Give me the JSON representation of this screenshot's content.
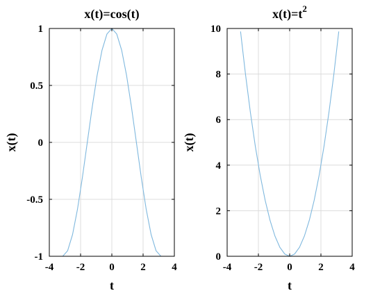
{
  "chart_data": [
    {
      "type": "line",
      "title": "x(t)=cos(t)",
      "xlabel": "t",
      "ylabel": "x(t)",
      "xlim": [
        -4,
        4
      ],
      "ylim": [
        -1,
        1
      ],
      "xticks": [
        -4,
        -2,
        0,
        2,
        4
      ],
      "xtick_labels": [
        "-4",
        "-2",
        "0",
        "2",
        "4"
      ],
      "yticks": [
        -1,
        -0.5,
        0,
        0.5,
        1
      ],
      "ytick_labels": [
        "-1",
        "-0.5",
        "0",
        "0.5",
        "1"
      ],
      "grid": true,
      "series_color": "#7fb8de",
      "series": [
        {
          "function": "cos(t)",
          "x": [
            -3.1416,
            -2.8274,
            -2.5133,
            -2.1991,
            -1.885,
            -1.5708,
            -1.2566,
            -0.9425,
            -0.6283,
            -0.3142,
            0,
            0.3142,
            0.6283,
            0.9425,
            1.2566,
            1.5708,
            1.885,
            2.1991,
            2.5133,
            2.8274,
            3.1416
          ],
          "values": [
            -1,
            -0.951,
            -0.809,
            -0.5878,
            -0.309,
            0,
            0.309,
            0.5878,
            0.809,
            0.951,
            1,
            0.951,
            0.809,
            0.5878,
            0.309,
            0,
            -0.309,
            -0.5878,
            -0.809,
            -0.951,
            -1
          ]
        }
      ]
    },
    {
      "type": "line",
      "title_base": "x(t)=t",
      "title_superscript": "2",
      "xlabel": "t",
      "ylabel": "x(t)",
      "xlim": [
        -4,
        4
      ],
      "ylim": [
        0,
        10
      ],
      "xticks": [
        -4,
        -2,
        0,
        2,
        4
      ],
      "xtick_labels": [
        "-4",
        "-2",
        "0",
        "2",
        "4"
      ],
      "yticks": [
        0,
        2,
        4,
        6,
        8,
        10
      ],
      "ytick_labels": [
        "0",
        "2",
        "4",
        "6",
        "8",
        "10"
      ],
      "grid": true,
      "series_color": "#7fb8de",
      "series": [
        {
          "function": "t^2",
          "x": [
            -3.1416,
            -2.8274,
            -2.5133,
            -2.1991,
            -1.885,
            -1.5708,
            -1.2566,
            -0.9425,
            -0.6283,
            -0.3142,
            0,
            0.3142,
            0.6283,
            0.9425,
            1.2566,
            1.5708,
            1.885,
            2.1991,
            2.5133,
            2.8274,
            3.1416
          ],
          "values": [
            9.8696,
            7.9944,
            6.3165,
            4.836,
            3.5531,
            2.4674,
            1.5791,
            0.8883,
            0.3948,
            0.0987,
            0,
            0.0987,
            0.3948,
            0.8883,
            1.5791,
            2.4674,
            3.5531,
            4.836,
            6.3165,
            7.9944,
            9.8696
          ]
        }
      ]
    }
  ]
}
